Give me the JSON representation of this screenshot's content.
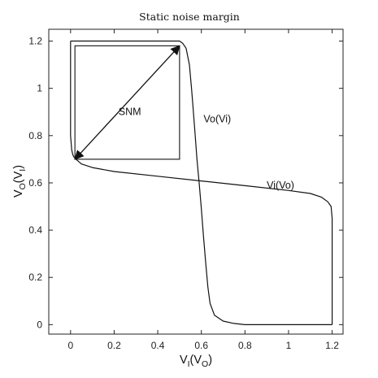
{
  "chart_data": {
    "type": "line",
    "title": "Static noise margin",
    "xlabel": {
      "main": "V",
      "sub": "I",
      "mid": "(V",
      "sub2": "O",
      "end": ")"
    },
    "ylabel": {
      "main": "V",
      "sub": "O",
      "mid": "(V",
      "sub2": "I",
      "end": ")"
    },
    "xlim": [
      -0.1,
      1.25
    ],
    "ylim": [
      -0.04,
      1.25
    ],
    "xticks": [
      0,
      0.2,
      0.4,
      0.6,
      0.8,
      1,
      1.2
    ],
    "xtick_labels": [
      "0",
      "0.2",
      "0.4",
      "0.6",
      "0.8",
      "1",
      "1.2"
    ],
    "yticks": [
      0,
      0.2,
      0.4,
      0.6,
      0.8,
      1,
      1.2
    ],
    "ytick_labels": [
      "0",
      "0.2",
      "0.4",
      "0.6",
      "0.8",
      "1",
      "1.2"
    ],
    "grid": false,
    "series": [
      {
        "name": "Vo(Vi)",
        "x": [
          0.0,
          0.5,
          0.515,
          0.53,
          0.545,
          0.555,
          0.56,
          0.57,
          0.58,
          0.59,
          0.6,
          0.61,
          0.62,
          0.63,
          0.64,
          0.66,
          0.7,
          0.75,
          0.8,
          1.2,
          1.2
        ],
        "y": [
          1.2,
          1.2,
          1.19,
          1.17,
          1.1,
          1.0,
          0.94,
          0.82,
          0.7,
          0.6,
          0.49,
          0.37,
          0.26,
          0.16,
          0.09,
          0.04,
          0.015,
          0.005,
          0.0,
          0.0,
          0.0
        ]
      },
      {
        "name": "Vi(Vo)",
        "x": [
          0.0,
          0.0,
          0.005,
          0.01,
          0.015,
          0.025,
          0.05,
          0.1,
          0.2,
          0.4,
          0.6,
          0.8,
          1.0,
          1.1,
          1.15,
          1.18,
          1.195,
          1.2,
          1.2
        ],
        "y": [
          1.2,
          0.8,
          0.74,
          0.72,
          0.71,
          0.7,
          0.68,
          0.665,
          0.648,
          0.628,
          0.608,
          0.588,
          0.568,
          0.555,
          0.54,
          0.52,
          0.5,
          0.45,
          0.0
        ]
      }
    ],
    "annotations": [
      {
        "text": "SNM",
        "x": 0.22,
        "y": 0.9
      },
      {
        "text": "Vo(Vi)",
        "x": 0.61,
        "y": 0.87
      },
      {
        "text": "Vi(Vo)",
        "x": 0.9,
        "y": 0.59
      }
    ],
    "snm_square": {
      "x0": 0.02,
      "y0": 0.7,
      "x1": 0.5,
      "y1": 1.18
    },
    "snm_arrow": {
      "from": [
        0.02,
        0.7
      ],
      "to": [
        0.5,
        1.18
      ]
    }
  }
}
